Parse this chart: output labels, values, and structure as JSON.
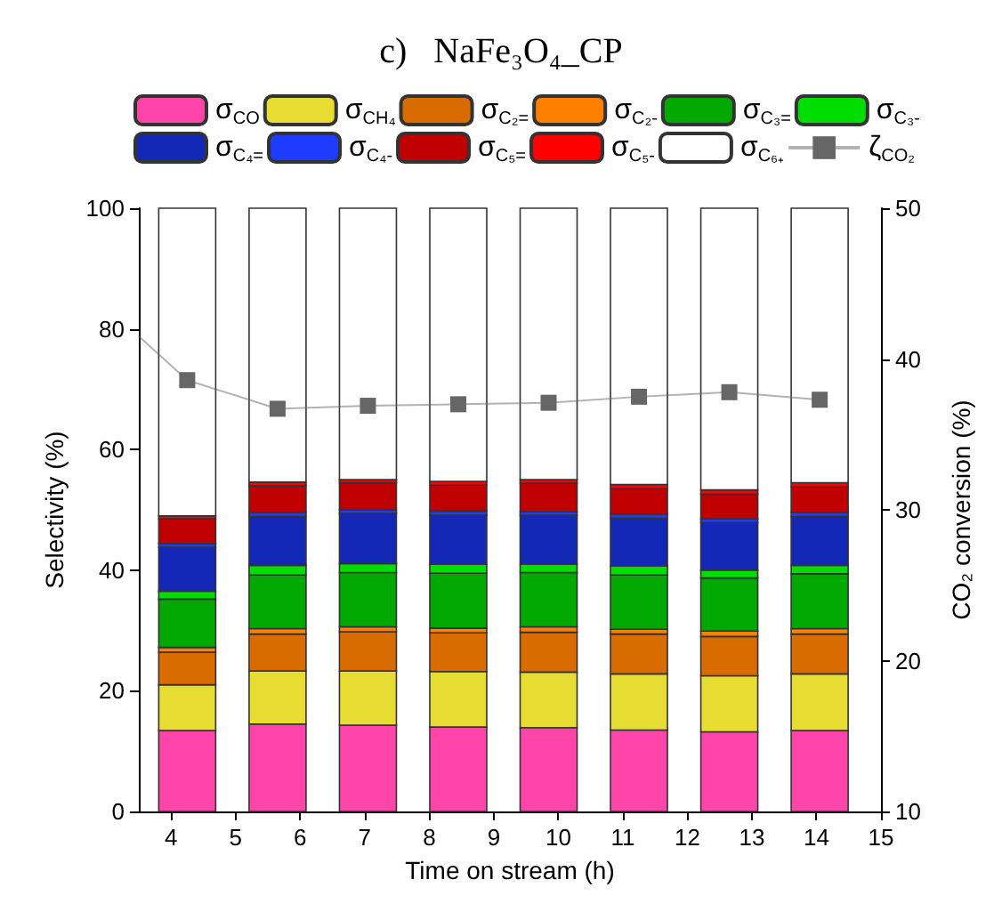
{
  "chart_data": {
    "type": "bar",
    "title": "c)   NaFe₃O₄_CP",
    "xlabel": "Time on stream (h)",
    "ylabel": "Selectivity (%)",
    "y2label": "CO₂ conversion (%)",
    "x": [
      4.25,
      5.65,
      7.05,
      8.45,
      9.85,
      11.25,
      12.65,
      14.05
    ],
    "stacked": true,
    "legend": "top",
    "grid": false,
    "xlim": [
      3.5,
      15
    ],
    "xticks": [
      4,
      5,
      6,
      7,
      8,
      9,
      10,
      11,
      12,
      13,
      14,
      15
    ],
    "ylim": [
      0,
      100
    ],
    "yticks": [
      0,
      20,
      40,
      60,
      80,
      100
    ],
    "y2lim": [
      10,
      50
    ],
    "y2ticks": [
      10,
      20,
      30,
      40,
      50
    ],
    "series": [
      {
        "name": "σ$_{CO}$",
        "color": "#ff44aa",
        "values": [
          13.4,
          14.5,
          14.3,
          14.0,
          13.9,
          13.5,
          13.2,
          13.4
        ]
      },
      {
        "name": "σ$_{CH₄}$",
        "color": "#e6dc32",
        "values": [
          7.6,
          8.8,
          9.0,
          9.2,
          9.2,
          9.3,
          9.3,
          9.4
        ]
      },
      {
        "name": "σ$_{C₂=}$",
        "color": "#d96c00",
        "values": [
          5.4,
          6.1,
          6.5,
          6.4,
          6.6,
          6.6,
          6.5,
          6.6
        ]
      },
      {
        "name": "σ$_{C₂-}$",
        "color": "#ff8000",
        "values": [
          0.8,
          0.9,
          0.8,
          0.8,
          0.9,
          0.8,
          0.9,
          0.9
        ]
      },
      {
        "name": "σ$_{C₃=}$",
        "color": "#00a800",
        "values": [
          8.0,
          8.9,
          9.0,
          9.1,
          9.0,
          9.0,
          8.8,
          9.1
        ]
      },
      {
        "name": "σ$_{C₃-}$",
        "color": "#00dd00",
        "values": [
          1.3,
          1.6,
          1.5,
          1.5,
          1.4,
          1.5,
          1.3,
          1.4
        ]
      },
      {
        "name": "σ$_{C₄=}$",
        "color": "#1428b8",
        "values": [
          7.3,
          8.1,
          8.3,
          8.1,
          8.1,
          7.9,
          7.9,
          8.1
        ]
      },
      {
        "name": "σ$_{C₄-}$",
        "color": "#1e3cff",
        "values": [
          0.6,
          0.7,
          0.6,
          0.7,
          0.6,
          0.7,
          0.6,
          0.7
        ]
      },
      {
        "name": "σ$_{C₅=}$",
        "color": "#c00000",
        "values": [
          4.1,
          4.4,
          4.5,
          4.3,
          4.7,
          4.2,
          4.1,
          4.2
        ]
      },
      {
        "name": "σ$_{C₅-}$",
        "color": "#ff0000",
        "values": [
          0.5,
          0.6,
          0.5,
          0.6,
          0.6,
          0.7,
          0.7,
          0.7
        ]
      },
      {
        "name": "σ$_{C₆₊}$",
        "color": "#ffffff",
        "values": [
          51.0,
          45.4,
          45.0,
          45.3,
          45.0,
          45.8,
          46.7,
          45.5
        ]
      },
      {
        "name": "ζ$_{CO₂}$",
        "type": "line",
        "axis": "y2",
        "marker": "square",
        "color": "#666666",
        "x": [
          3.5,
          4.25,
          5.65,
          7.05,
          8.45,
          9.85,
          11.25,
          12.65,
          14.05
        ],
        "values": [
          41.5,
          38.6,
          36.7,
          36.9,
          37.0,
          37.1,
          37.5,
          37.8,
          37.3
        ]
      }
    ]
  }
}
